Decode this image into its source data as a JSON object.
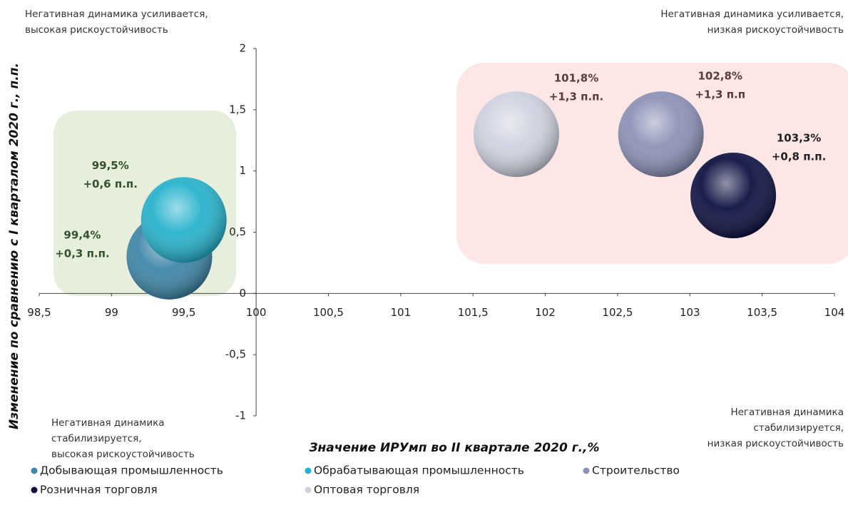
{
  "chart_data": {
    "type": "bubble",
    "x_label": "Значение ИРУмп во II квартале 2020 г.,%",
    "y_label": "Изменение по сравнению с I кварталом 2020 г., п.п.",
    "xlim": [
      98.5,
      104
    ],
    "xticks": [
      {
        "value": 98.5,
        "label": "98,5"
      },
      99,
      {
        "value": 99.5,
        "label": "99,5"
      },
      100,
      {
        "value": 100.5,
        "label": "100,5"
      },
      101,
      {
        "value": 101.5,
        "label": "101,5"
      },
      102,
      {
        "value": 102.5,
        "label": "102,5"
      },
      103,
      {
        "value": 103.5,
        "label": "103,5"
      },
      104
    ],
    "ylim": [
      -1,
      2
    ],
    "yticks": [
      -1,
      {
        "value": -0.5,
        "label": "-0,5"
      },
      0,
      {
        "value": 0.5,
        "label": "0,5"
      },
      1,
      {
        "value": 1.5,
        "label": "1,5"
      },
      2
    ],
    "series": [
      {
        "name": "Добывающая промышленность",
        "color": "#3f86a8",
        "x": [
          99.4
        ],
        "values": [
          0.3
        ],
        "x_labels": [
          "99,4%"
        ],
        "value_labels": [
          "+0,3 п.п."
        ]
      },
      {
        "name": "Обрабатывающая промышленность",
        "color": "#27b3cc",
        "x": [
          99.5
        ],
        "values": [
          0.6
        ],
        "x_labels": [
          "99,5%"
        ],
        "value_labels": [
          "+0,6 п.п."
        ]
      },
      {
        "name": "Строительство",
        "color": "#8d91b6",
        "x": [
          102.8
        ],
        "values": [
          1.3
        ],
        "x_labels": [
          "102,8%"
        ],
        "value_labels": [
          "+1,3 п.п"
        ]
      },
      {
        "name": "Розничная торговля",
        "color": "#0e1242",
        "x": [
          103.3
        ],
        "values": [
          0.8
        ],
        "x_labels": [
          "103,3%"
        ],
        "value_labels": [
          "+0,8 п.п."
        ]
      },
      {
        "name": "Оптовая торговля",
        "color": "#cfd2e0",
        "x": [
          101.8
        ],
        "values": [
          1.3
        ],
        "x_labels": [
          "101,8%"
        ],
        "value_labels": [
          "+1,3 п.п."
        ]
      }
    ],
    "annotations": [
      {
        "corner": "top-left",
        "lines": [
          "Негативная динамика усиливается,",
          "высокая рискоустойчивость"
        ]
      },
      {
        "corner": "top-right",
        "lines": [
          "Негативная динамика усиливается,",
          "низкая рискоустойчивость"
        ]
      },
      {
        "corner": "bottom-left",
        "lines": [
          "Негативная динамика",
          "стабилизируется,",
          "высокая рискоустойчивость"
        ]
      },
      {
        "corner": "bottom-right",
        "lines": [
          "Негативная динамика",
          "стабилизируется,",
          "низкая рискоустойчивость"
        ]
      }
    ]
  }
}
